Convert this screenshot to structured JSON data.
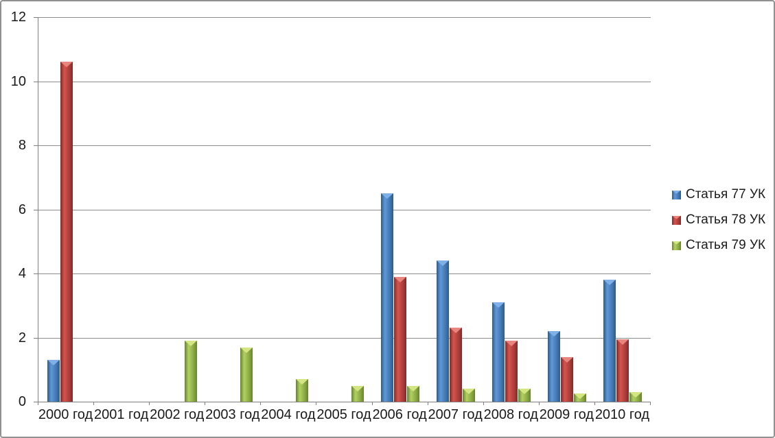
{
  "chart_data": {
    "type": "bar",
    "categories": [
      "2000 год",
      "2001 год",
      "2002 год",
      "2003 год",
      "2004 год",
      "2005 год",
      "2006 год",
      "2007 год",
      "2008 год",
      "2009 год",
      "2010 год"
    ],
    "series": [
      {
        "name": "Статья 77 УК",
        "values": [
          1.3,
          0,
          0,
          0,
          0,
          0,
          6.5,
          4.4,
          3.1,
          2.2,
          3.8
        ],
        "color": "#4F81BD",
        "color_edge": "#2E5A88",
        "color_bright": "#6098D8",
        "color_base": "#3F74AC",
        "color_cap": "#7FB0E8"
      },
      {
        "name": "Статья 78 УК",
        "values": [
          10.6,
          0,
          0,
          0,
          0,
          0,
          3.9,
          2.3,
          1.9,
          1.4,
          1.95
        ],
        "color": "#C0504D",
        "color_edge": "#7E2B28",
        "color_bright": "#D5544E",
        "color_base": "#A63B38",
        "color_cap": "#E8857F"
      },
      {
        "name": "Статья 79 УК",
        "values": [
          0,
          0,
          1.9,
          1.7,
          0.7,
          0.5,
          0.5,
          0.4,
          0.4,
          0.25,
          0.3
        ],
        "color": "#9BBB59",
        "color_edge": "#65832F",
        "color_bright": "#B2D063",
        "color_base": "#86A540",
        "color_cap": "#D4E683"
      }
    ],
    "title": "",
    "xlabel": "",
    "ylabel": "",
    "ylim": [
      0,
      12
    ],
    "yticks": [
      0,
      2,
      4,
      6,
      8,
      10,
      12
    ],
    "grid": true,
    "legend_position": "right",
    "gridline_color": "#8C8C8C",
    "axis_color": "#7F7F7F",
    "text_color": "#1A1A1A"
  }
}
